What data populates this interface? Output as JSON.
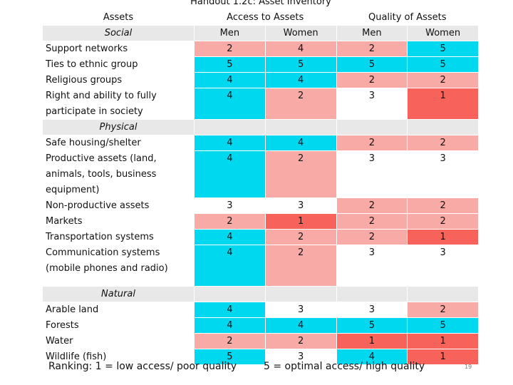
{
  "title": "Handout 1.2c: Asset Inventory",
  "headers": {
    "assets": "Assets",
    "access": "Access to Assets",
    "quality": "Quality of Assets",
    "men": "Men",
    "women": "Women"
  },
  "sections": {
    "social": "Social",
    "physical": "Physical",
    "natural": "Natural"
  },
  "rows": {
    "support": {
      "label": "Support networks",
      "am": "2",
      "aw": "4",
      "qm": "2",
      "qw": "5"
    },
    "ethnic": {
      "label": "Ties to ethnic group",
      "am": "5",
      "aw": "5",
      "qm": "5",
      "qw": "5"
    },
    "religious": {
      "label": "Religious groups",
      "am": "4",
      "aw": "4",
      "qm": "2",
      "qw": "2"
    },
    "rights": {
      "label1": "Right and ability to fully",
      "label2": "participate in society",
      "am": "4",
      "aw": "2",
      "qm": "3",
      "qw": "1"
    },
    "housing": {
      "label": "Safe housing/shelter",
      "am": "4",
      "aw": "4",
      "qm": "2",
      "qw": "2"
    },
    "productive": {
      "label1": "Productive assets (land,",
      "label2": "animals, tools, business",
      "label3": "equipment)",
      "am": "4",
      "aw": "2",
      "qm": "3",
      "qw": "3"
    },
    "nonproductive": {
      "label": "Non-productive assets",
      "am": "3",
      "aw": "3",
      "qm": "2",
      "qw": "2"
    },
    "markets": {
      "label": "Markets",
      "am": "2",
      "aw": "1",
      "qm": "2",
      "qw": "2"
    },
    "transport": {
      "label": "Transportation systems",
      "am": "4",
      "aw": "2",
      "qm": "2",
      "qw": "1"
    },
    "communication": {
      "label1": "Communication systems",
      "label2": "(mobile phones and radio)",
      "am": "4",
      "aw": "2",
      "qm": "3",
      "qw": "3"
    },
    "arable": {
      "label": "Arable land",
      "am": "4",
      "aw": "3",
      "qm": "3",
      "qw": "2"
    },
    "forests": {
      "label": "Forests",
      "am": "4",
      "aw": "4",
      "qm": "5",
      "qw": "5"
    },
    "water": {
      "label": "Water",
      "am": "2",
      "aw": "2",
      "qm": "1",
      "qw": "1"
    },
    "wildlife": {
      "label": "Wildlife (fish)",
      "am": "5",
      "aw": "3",
      "qm": "4",
      "qw": "1"
    }
  },
  "footer": {
    "ranking": "Ranking:  1 = low access/ poor quality",
    "optimal": "5 = optimal access/ high quality",
    "page_number": "19"
  },
  "colors": {
    "cyan": "#00d8f0",
    "pink": "#f7aaa6",
    "red": "#f7625a",
    "grey": "#e8e8e8"
  }
}
